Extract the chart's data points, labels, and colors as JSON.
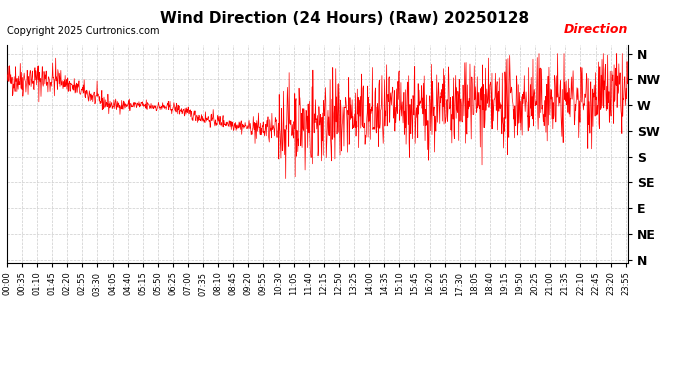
{
  "title": "Wind Direction (24 Hours) (Raw) 20250128",
  "copyright": "Copyright 2025 Curtronics.com",
  "legend_label": "Direction",
  "legend_color": "red",
  "line_color": "red",
  "background_color": "#ffffff",
  "grid_color": "#cccccc",
  "ytick_labels": [
    "N",
    "NW",
    "W",
    "SW",
    "S",
    "SE",
    "E",
    "NE",
    "N"
  ],
  "ytick_values": [
    360,
    315,
    270,
    225,
    180,
    135,
    90,
    45,
    0
  ],
  "ylim": [
    -5,
    375
  ],
  "num_points": 1440,
  "seed": 42,
  "figsize": [
    6.9,
    3.75
  ],
  "dpi": 100
}
